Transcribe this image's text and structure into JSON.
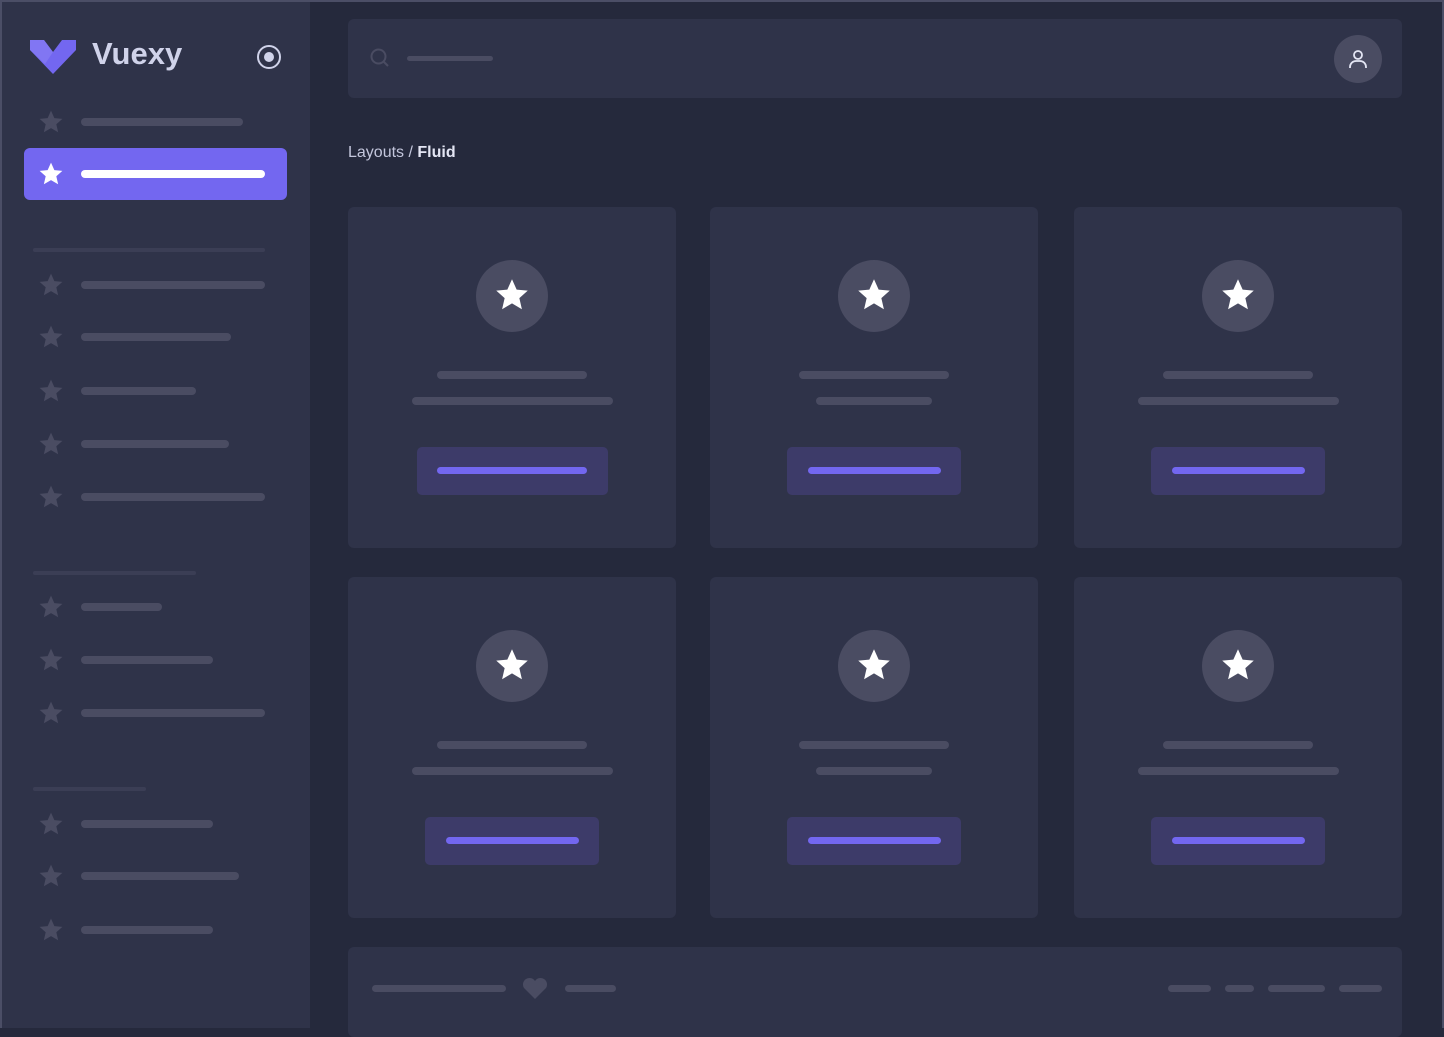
{
  "app": {
    "brand": "Vuexy",
    "logo_icon": "vuexy-logo",
    "accent_color": "#7367f0"
  },
  "sidebar": {
    "toggle_icon": "radio-circle-icon",
    "item_icon": "star-icon",
    "active_index": 1
  },
  "header": {
    "search_icon": "search-icon",
    "avatar_icon": "user-icon"
  },
  "breadcrumb": {
    "parent": "Layouts",
    "separator": " / ",
    "current": "Fluid"
  },
  "cards": {
    "count": 6,
    "icon": "star-icon"
  },
  "footer": {
    "icon": "heart-icon"
  }
}
